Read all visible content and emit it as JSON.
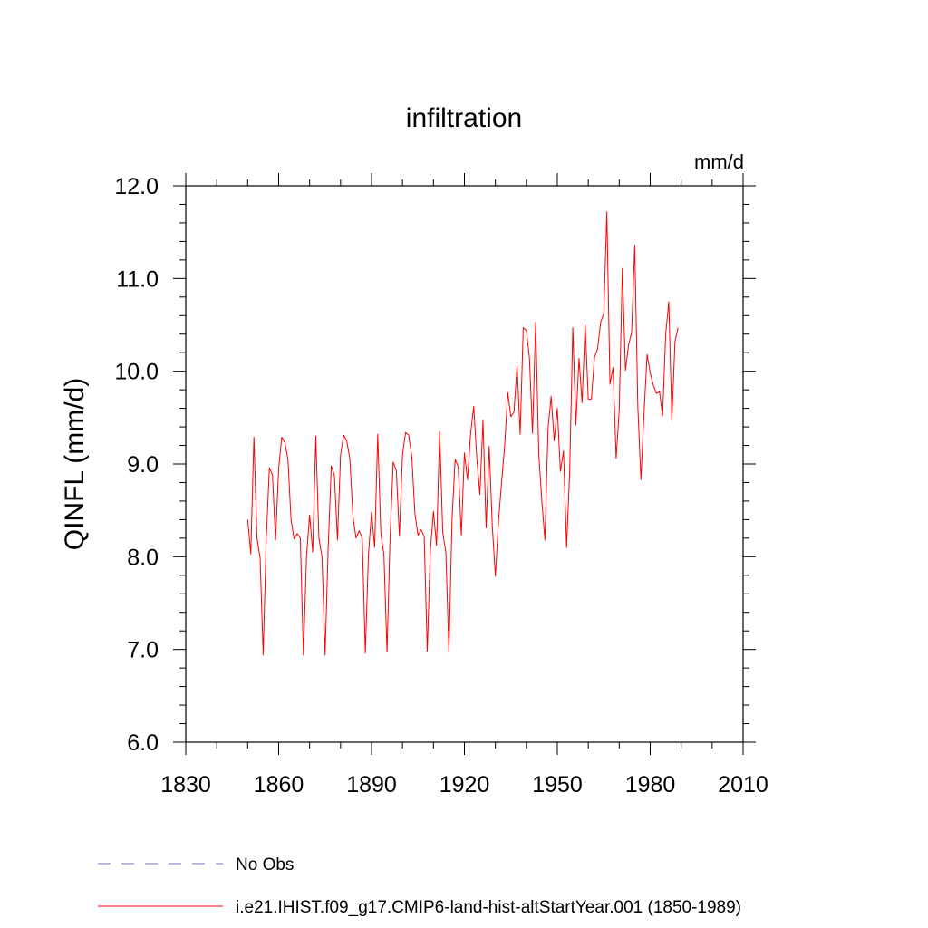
{
  "colors": {
    "series": "#ff0000",
    "obs": "#7a6fb8",
    "frame": "#000000"
  },
  "chart_data": {
    "type": "line",
    "title": "infiltration",
    "units": "mm/d",
    "ylabel": "QINFL  (mm/d)",
    "xlabel": "",
    "xlim": [
      1830,
      2010
    ],
    "ylim": [
      6.0,
      12.0
    ],
    "xticks": [
      "1830",
      "1860",
      "1890",
      "1920",
      "1950",
      "1980",
      "2010"
    ],
    "yticks": [
      "6.0",
      "7.0",
      "8.0",
      "9.0",
      "10.0",
      "11.0",
      "12.0"
    ],
    "legend_position": "bottom",
    "legend": [
      {
        "label": "No Obs",
        "style": "dashed"
      },
      {
        "label": "i.e21.IHIST.f09_g17.CMIP6-land-hist-altStartYear.001 (1850-1989)",
        "style": "solid"
      }
    ],
    "series": [
      {
        "name": "i.e21.IHIST.f09_g17.CMIP6-land-hist-altStartYear.001 (1850-1989)",
        "x_start": 1850,
        "x_step": 1,
        "values": [
          8.4,
          8.03,
          9.29,
          8.2,
          7.99,
          6.94,
          8.2,
          8.96,
          8.88,
          8.18,
          8.95,
          9.29,
          9.23,
          9.05,
          8.4,
          8.19,
          8.25,
          8.2,
          6.94,
          8.0,
          8.45,
          8.05,
          9.3,
          8.2,
          8.0,
          6.94,
          8.1,
          8.98,
          8.88,
          8.18,
          9.1,
          9.31,
          9.25,
          9.05,
          8.43,
          8.2,
          8.28,
          8.2,
          6.96,
          8.02,
          8.48,
          8.1,
          9.32,
          8.25,
          8.02,
          6.97,
          8.22,
          9.02,
          8.93,
          8.22,
          9.1,
          9.34,
          9.31,
          9.08,
          8.47,
          8.23,
          8.29,
          8.22,
          6.98,
          8.07,
          8.49,
          8.12,
          9.35,
          8.26,
          8.05,
          6.97,
          8.4,
          9.05,
          8.97,
          8.23,
          9.12,
          8.83,
          9.33,
          9.62,
          9.06,
          8.67,
          9.47,
          8.31,
          9.19,
          8.33,
          7.79,
          8.38,
          8.8,
          9.2,
          9.77,
          9.51,
          9.56,
          10.06,
          9.32,
          10.47,
          10.44,
          10.14,
          9.33,
          10.53,
          9.12,
          8.6,
          8.18,
          9.38,
          9.73,
          9.25,
          9.6,
          8.92,
          9.14,
          8.1,
          8.92,
          10.47,
          9.42,
          10.14,
          9.66,
          10.5,
          9.7,
          9.7,
          10.15,
          10.24,
          10.53,
          10.62,
          11.72,
          9.86,
          10.04,
          9.06,
          9.58,
          11.11,
          10.01,
          10.28,
          10.42,
          11.36,
          9.62,
          8.83,
          9.55,
          10.18,
          9.98,
          9.85,
          9.76,
          9.78,
          9.52,
          10.4,
          10.75,
          9.47,
          10.32,
          10.47
        ]
      }
    ]
  }
}
